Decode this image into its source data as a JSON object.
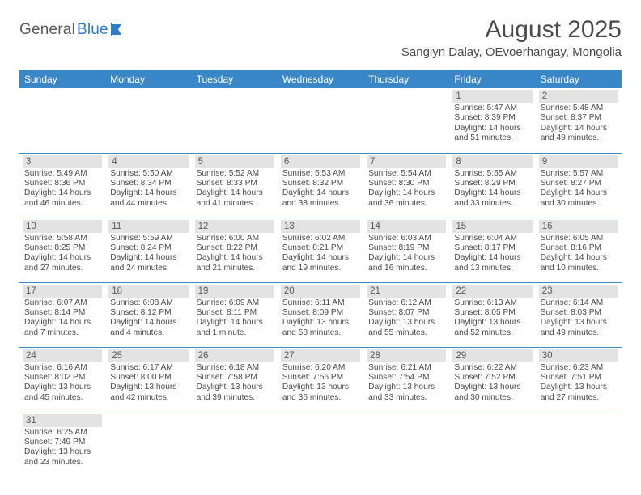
{
  "brand": {
    "general": "General",
    "blue": "Blue"
  },
  "title": "August 2025",
  "location": "Sangiyn Dalay, OEvoerhangay, Mongolia",
  "colors": {
    "header_bg": "#3a87c8",
    "header_fg": "#ffffff",
    "daynum_bg": "#e3e3e3",
    "border": "#3a87c8",
    "text": "#4a4a4a"
  },
  "dayHeaders": [
    "Sunday",
    "Monday",
    "Tuesday",
    "Wednesday",
    "Thursday",
    "Friday",
    "Saturday"
  ],
  "weeks": [
    [
      null,
      null,
      null,
      null,
      null,
      {
        "n": "1",
        "sr": "5:47 AM",
        "ss": "8:39 PM",
        "dl": "14 hours and 51 minutes."
      },
      {
        "n": "2",
        "sr": "5:48 AM",
        "ss": "8:37 PM",
        "dl": "14 hours and 49 minutes."
      }
    ],
    [
      {
        "n": "3",
        "sr": "5:49 AM",
        "ss": "8:36 PM",
        "dl": "14 hours and 46 minutes."
      },
      {
        "n": "4",
        "sr": "5:50 AM",
        "ss": "8:34 PM",
        "dl": "14 hours and 44 minutes."
      },
      {
        "n": "5",
        "sr": "5:52 AM",
        "ss": "8:33 PM",
        "dl": "14 hours and 41 minutes."
      },
      {
        "n": "6",
        "sr": "5:53 AM",
        "ss": "8:32 PM",
        "dl": "14 hours and 38 minutes."
      },
      {
        "n": "7",
        "sr": "5:54 AM",
        "ss": "8:30 PM",
        "dl": "14 hours and 36 minutes."
      },
      {
        "n": "8",
        "sr": "5:55 AM",
        "ss": "8:29 PM",
        "dl": "14 hours and 33 minutes."
      },
      {
        "n": "9",
        "sr": "5:57 AM",
        "ss": "8:27 PM",
        "dl": "14 hours and 30 minutes."
      }
    ],
    [
      {
        "n": "10",
        "sr": "5:58 AM",
        "ss": "8:25 PM",
        "dl": "14 hours and 27 minutes."
      },
      {
        "n": "11",
        "sr": "5:59 AM",
        "ss": "8:24 PM",
        "dl": "14 hours and 24 minutes."
      },
      {
        "n": "12",
        "sr": "6:00 AM",
        "ss": "8:22 PM",
        "dl": "14 hours and 21 minutes."
      },
      {
        "n": "13",
        "sr": "6:02 AM",
        "ss": "8:21 PM",
        "dl": "14 hours and 19 minutes."
      },
      {
        "n": "14",
        "sr": "6:03 AM",
        "ss": "8:19 PM",
        "dl": "14 hours and 16 minutes."
      },
      {
        "n": "15",
        "sr": "6:04 AM",
        "ss": "8:17 PM",
        "dl": "14 hours and 13 minutes."
      },
      {
        "n": "16",
        "sr": "6:05 AM",
        "ss": "8:16 PM",
        "dl": "14 hours and 10 minutes."
      }
    ],
    [
      {
        "n": "17",
        "sr": "6:07 AM",
        "ss": "8:14 PM",
        "dl": "14 hours and 7 minutes."
      },
      {
        "n": "18",
        "sr": "6:08 AM",
        "ss": "8:12 PM",
        "dl": "14 hours and 4 minutes."
      },
      {
        "n": "19",
        "sr": "6:09 AM",
        "ss": "8:11 PM",
        "dl": "14 hours and 1 minute."
      },
      {
        "n": "20",
        "sr": "6:11 AM",
        "ss": "8:09 PM",
        "dl": "13 hours and 58 minutes."
      },
      {
        "n": "21",
        "sr": "6:12 AM",
        "ss": "8:07 PM",
        "dl": "13 hours and 55 minutes."
      },
      {
        "n": "22",
        "sr": "6:13 AM",
        "ss": "8:05 PM",
        "dl": "13 hours and 52 minutes."
      },
      {
        "n": "23",
        "sr": "6:14 AM",
        "ss": "8:03 PM",
        "dl": "13 hours and 49 minutes."
      }
    ],
    [
      {
        "n": "24",
        "sr": "6:16 AM",
        "ss": "8:02 PM",
        "dl": "13 hours and 45 minutes."
      },
      {
        "n": "25",
        "sr": "6:17 AM",
        "ss": "8:00 PM",
        "dl": "13 hours and 42 minutes."
      },
      {
        "n": "26",
        "sr": "6:18 AM",
        "ss": "7:58 PM",
        "dl": "13 hours and 39 minutes."
      },
      {
        "n": "27",
        "sr": "6:20 AM",
        "ss": "7:56 PM",
        "dl": "13 hours and 36 minutes."
      },
      {
        "n": "28",
        "sr": "6:21 AM",
        "ss": "7:54 PM",
        "dl": "13 hours and 33 minutes."
      },
      {
        "n": "29",
        "sr": "6:22 AM",
        "ss": "7:52 PM",
        "dl": "13 hours and 30 minutes."
      },
      {
        "n": "30",
        "sr": "6:23 AM",
        "ss": "7:51 PM",
        "dl": "13 hours and 27 minutes."
      }
    ],
    [
      {
        "n": "31",
        "sr": "6:25 AM",
        "ss": "7:49 PM",
        "dl": "13 hours and 23 minutes."
      },
      null,
      null,
      null,
      null,
      null,
      null
    ]
  ],
  "labels": {
    "sunrise": "Sunrise:",
    "sunset": "Sunset:",
    "daylight": "Daylight:"
  }
}
